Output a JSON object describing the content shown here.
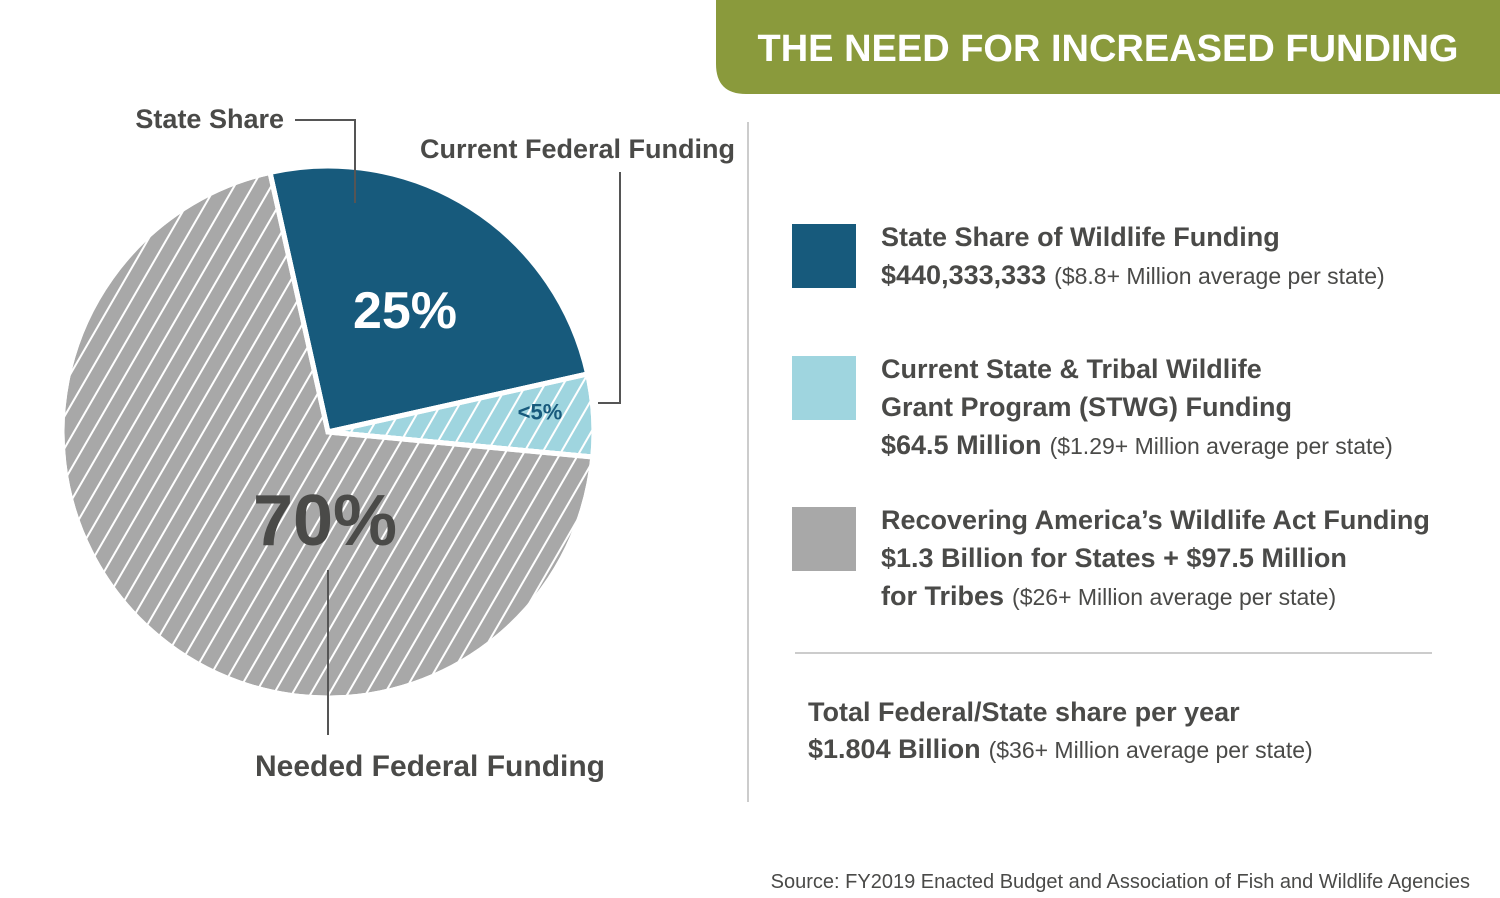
{
  "chart_data": {
    "type": "pie",
    "title": "THE NEED FOR INCREASED FUNDING",
    "categories": [
      "State Share",
      "Current Federal Funding",
      "Needed Federal Funding"
    ],
    "values": [
      25,
      5,
      70
    ],
    "value_labels": [
      "25%",
      "<5%",
      "70%"
    ],
    "colors": [
      "#175a7c",
      "#9fd5df",
      "#a8a8a8"
    ],
    "hatched": [
      false,
      true,
      true
    ],
    "legend": [
      {
        "title_lines": [
          "State Share of Wildlife Funding"
        ],
        "amount": "$440,333,333",
        "note": "($8.8+ Million average per state)"
      },
      {
        "title_lines": [
          "Current State & Tribal Wildlife",
          "Grant Program (STWG) Funding"
        ],
        "amount": "$64.5 Million",
        "note": "($1.29+ Million average per state)"
      },
      {
        "title_lines": [
          "Recovering America’s Wildlife Act Funding",
          "$1.3 Billion for States + $97.5 Million"
        ],
        "amount": "for Tribes",
        "note": "($26+ Million average per state)"
      }
    ],
    "total": {
      "title": "Total Federal/State share per year",
      "amount": "$1.804 Billion",
      "note": "($36+ Million average per state)"
    },
    "source": "Source: FY2019 Enacted Budget and Association of Fish and Wildlife Agencies"
  }
}
